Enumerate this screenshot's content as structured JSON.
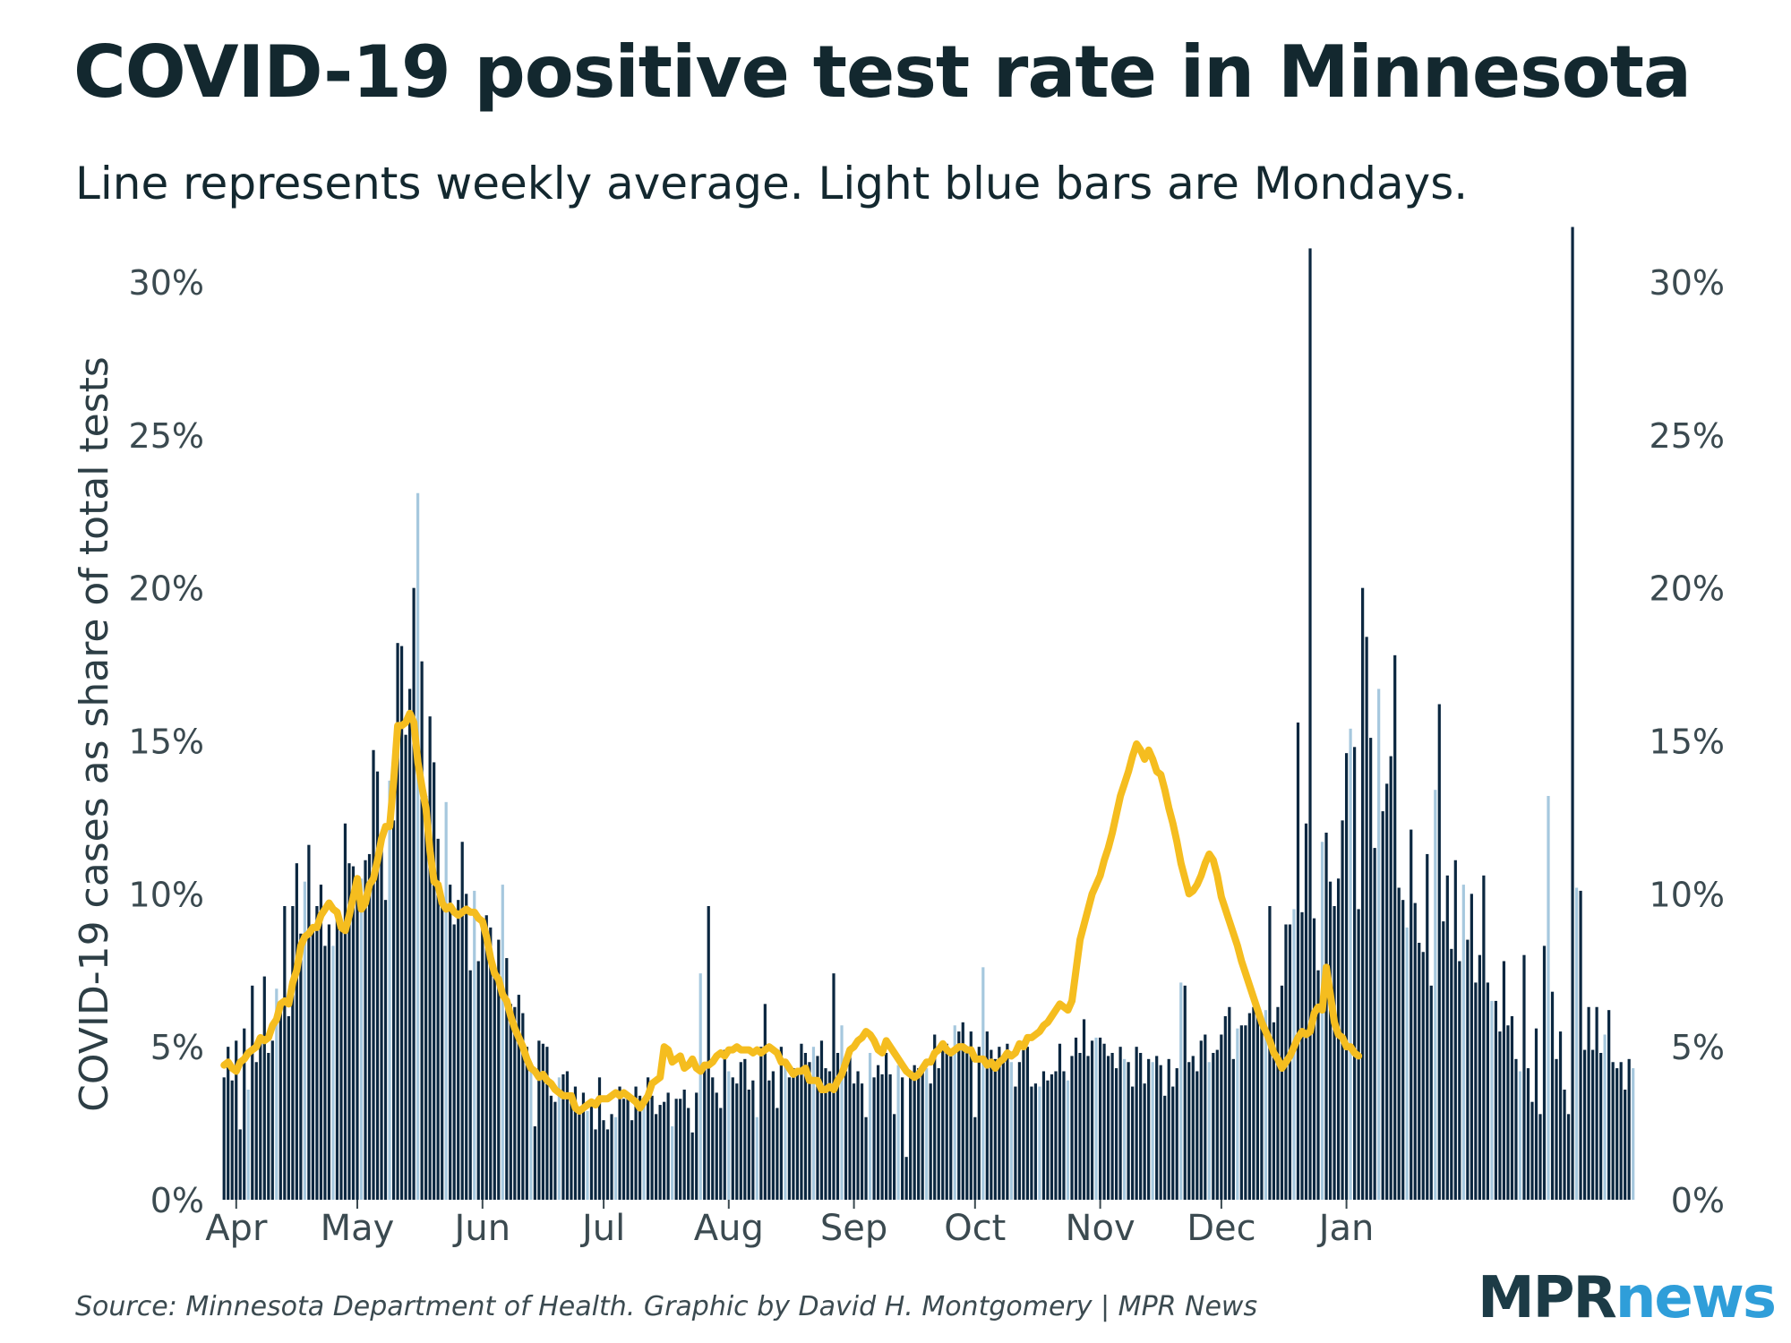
{
  "title": "COVID-19 positive test rate in Minnesota",
  "subtitle": "Line represents weekly average. Light blue bars are Mondays.",
  "source": "Source: Minnesota Department of Health. Graphic by David H. Montgomery | MPR News",
  "logo": {
    "part1": "MPR",
    "part2": "news"
  },
  "colors": {
    "bar": "#0b2740",
    "monday_bar": "#a6c8de",
    "line": "#f5bd1f",
    "text": "#13282f"
  },
  "chart_data": {
    "type": "bar",
    "title": "COVID-19 positive test rate in Minnesota",
    "subtitle": "Line represents weekly average. Light blue bars are Mondays.",
    "ylabel": "COVID-19 cases as share of total tests",
    "xlabel": "",
    "ylim": [
      0,
      32
    ],
    "yticks": [
      "0%",
      "5%",
      "10%",
      "15%",
      "20%",
      "25%",
      "30%"
    ],
    "ytick_values": [
      0,
      5,
      10,
      15,
      20,
      25,
      30
    ],
    "y_axis_sides": "left and right",
    "x_ticks": [
      {
        "label": "Apr",
        "day": 3
      },
      {
        "label": "May",
        "day": 33
      },
      {
        "label": "Jun",
        "day": 64
      },
      {
        "label": "Jul",
        "day": 94
      },
      {
        "label": "Aug",
        "day": 125
      },
      {
        "label": "Sep",
        "day": 156
      },
      {
        "label": "Oct",
        "day": 186
      },
      {
        "label": "Nov",
        "day": 217
      },
      {
        "label": "Dec",
        "day": 247
      },
      {
        "label": "Jan",
        "day": 278
      }
    ],
    "start_date": "2020-03-31",
    "first_monday_index": 6,
    "series": [
      {
        "name": "Daily positive rate",
        "kind": "bar",
        "values": [
          4.0,
          5.0,
          3.9,
          5.2,
          2.3,
          5.6,
          3.6,
          7.0,
          4.5,
          5.2,
          7.3,
          4.8,
          5.2,
          6.9,
          6.2,
          9.6,
          6.0,
          9.6,
          11.0,
          8.7,
          10.4,
          11.6,
          8.9,
          9.6,
          10.3,
          8.3,
          9.0,
          8.3,
          9.5,
          8.9,
          12.3,
          11.0,
          10.9,
          10.0,
          10.5,
          11.1,
          11.3,
          14.7,
          14.0,
          11.6,
          9.8,
          13.7,
          12.4,
          18.2,
          18.1,
          15.2,
          16.7,
          20.0,
          23.1,
          17.6,
          13.2,
          15.8,
          14.3,
          11.8,
          9.9,
          13.0,
          10.3,
          9.0,
          9.8,
          11.7,
          10.0,
          7.5,
          10.1,
          7.8,
          9.0,
          9.3,
          8.9,
          7.6,
          8.5,
          10.3,
          7.9,
          6.4,
          6.3,
          6.7,
          6.1,
          5.0,
          4.2,
          2.4,
          5.2,
          5.1,
          5.0,
          3.4,
          3.2,
          4.0,
          4.1,
          4.2,
          3.2,
          3.7,
          3.0,
          3.5,
          2.9,
          3.3,
          2.3,
          4.0,
          2.6,
          2.3,
          2.8,
          2.7,
          3.7,
          3.3,
          3.5,
          2.6,
          3.7,
          3.4,
          3.1,
          4.0,
          3.4,
          2.8,
          3.1,
          3.2,
          3.5,
          2.4,
          3.3,
          3.3,
          3.6,
          3.0,
          2.2,
          3.5,
          7.4,
          4.4,
          9.6,
          4.0,
          3.5,
          3.0,
          4.9,
          4.2,
          4.0,
          3.8,
          4.5,
          4.6,
          3.6,
          3.9,
          2.7,
          5.0,
          6.4,
          3.9,
          4.2,
          3.0,
          5.0,
          4.6,
          4.0,
          4.3,
          4.2,
          5.1,
          4.8,
          4.5,
          5.0,
          4.7,
          5.2,
          4.3,
          4.2,
          7.4,
          4.8,
          5.7,
          4.2,
          4.9,
          3.8,
          4.2,
          3.8,
          2.7,
          4.8,
          4.0,
          4.4,
          4.1,
          4.8,
          4.1,
          2.8,
          4.4,
          4.0,
          1.4,
          4.0,
          4.4,
          4.3,
          4.3,
          4.3,
          3.8,
          5.4,
          4.3,
          5.1,
          5.1,
          4.7,
          5.7,
          5.5,
          5.8,
          5.0,
          5.5,
          2.7,
          5.0,
          7.6,
          5.5,
          4.9,
          4.6,
          5.0,
          4.7,
          5.1,
          4.5,
          3.7,
          4.5,
          5.2,
          5.0,
          3.7,
          3.8,
          3.7,
          4.2,
          3.9,
          4.1,
          4.2,
          5.1,
          4.2,
          3.9,
          4.7,
          5.3,
          4.8,
          5.9,
          4.7,
          5.2,
          5.3,
          5.3,
          5.1,
          4.7,
          4.8,
          4.3,
          5.0,
          4.6,
          4.5,
          3.7,
          5.0,
          4.8,
          3.8,
          4.6,
          4.5,
          4.7,
          4.4,
          3.4,
          4.6,
          3.7,
          4.3,
          7.1,
          7.0,
          4.5,
          4.7,
          4.2,
          5.2,
          5.4,
          4.5,
          4.8,
          4.9,
          5.4,
          6.0,
          6.3,
          4.6,
          5.6,
          5.7,
          5.7,
          6.1,
          6.3,
          6.1,
          5.9,
          6.2,
          9.6,
          5.8,
          6.3,
          7.0,
          9.0,
          9.0,
          9.5,
          15.6,
          9.4,
          12.3,
          31.1,
          9.2,
          7.5,
          11.7,
          12.0,
          10.4,
          9.6,
          10.5,
          12.4,
          14.6,
          15.4,
          14.8,
          9.5,
          20.0,
          18.4,
          15.1,
          11.5,
          16.7,
          12.7,
          13.6,
          14.5,
          17.8,
          10.2,
          9.8,
          8.9,
          12.1,
          9.7,
          8.4,
          8.1,
          11.3,
          7.0,
          13.4,
          16.2,
          9.1,
          10.6,
          8.2,
          11.1,
          7.8,
          10.3,
          8.5,
          10.0,
          7.1,
          8.0,
          10.6,
          7.1,
          6.5,
          6.5,
          5.5,
          7.8,
          5.7,
          6.0,
          4.6,
          4.2,
          8.0,
          4.3,
          3.2,
          5.6,
          2.8,
          8.3,
          13.2,
          6.8,
          4.6,
          5.5,
          3.6,
          2.8,
          31.8,
          10.2,
          10.1,
          4.9,
          6.3,
          4.9,
          6.3,
          4.8,
          5.4,
          6.2,
          4.5,
          4.3,
          4.5,
          3.6,
          4.6,
          4.3
        ]
      },
      {
        "name": "Weekly average",
        "kind": "line",
        "values": [
          4.4,
          4.5,
          4.3,
          4.2,
          4.5,
          4.6,
          4.8,
          4.9,
          5.0,
          5.3,
          5.2,
          5.3,
          5.7,
          5.9,
          6.4,
          6.5,
          6.4,
          7.1,
          7.5,
          8.3,
          8.6,
          8.7,
          8.9,
          8.9,
          9.3,
          9.5,
          9.7,
          9.5,
          9.4,
          8.9,
          8.8,
          9.3,
          9.9,
          10.5,
          9.5,
          9.7,
          10.3,
          10.5,
          11.1,
          11.8,
          12.2,
          12.2,
          13.7,
          15.5,
          15.5,
          15.6,
          15.9,
          15.6,
          14.3,
          13.5,
          12.8,
          11.4,
          10.4,
          10.3,
          9.7,
          9.5,
          9.6,
          9.4,
          9.3,
          9.4,
          9.5,
          9.4,
          9.4,
          9.2,
          9.1,
          8.6,
          7.9,
          7.4,
          7.2,
          6.7,
          6.5,
          6.0,
          5.6,
          5.3,
          5.0,
          4.6,
          4.3,
          4.2,
          4.0,
          4.1,
          3.9,
          3.8,
          3.6,
          3.5,
          3.4,
          3.4,
          3.4,
          3.0,
          2.9,
          3.0,
          3.1,
          3.2,
          3.1,
          3.3,
          3.3,
          3.3,
          3.4,
          3.5,
          3.4,
          3.5,
          3.4,
          3.3,
          3.2,
          3.0,
          3.2,
          3.4,
          3.8,
          3.9,
          4.0,
          5.0,
          4.9,
          4.5,
          4.6,
          4.7,
          4.3,
          4.4,
          4.6,
          4.3,
          4.2,
          4.4,
          4.4,
          4.5,
          4.7,
          4.8,
          4.7,
          4.9,
          4.9,
          5.0,
          4.9,
          4.9,
          4.9,
          4.8,
          4.9,
          4.8,
          4.9,
          5.0,
          4.9,
          4.8,
          4.5,
          4.5,
          4.3,
          4.1,
          4.2,
          4.2,
          4.3,
          3.9,
          3.9,
          3.9,
          3.6,
          3.6,
          3.7,
          3.6,
          3.9,
          4.1,
          4.5,
          4.9,
          5.0,
          5.2,
          5.3,
          5.5,
          5.4,
          5.2,
          4.9,
          4.8,
          5.2,
          5.0,
          4.8,
          4.6,
          4.4,
          4.2,
          4.1,
          4.0,
          4.1,
          4.3,
          4.5,
          4.5,
          4.8,
          4.9,
          5.1,
          4.9,
          4.8,
          4.9,
          5.0,
          5.0,
          4.9,
          4.9,
          4.6,
          4.6,
          4.6,
          4.4,
          4.5,
          4.3,
          4.5,
          4.6,
          4.8,
          4.7,
          4.8,
          5.1,
          5.0,
          5.3,
          5.3,
          5.4,
          5.5,
          5.7,
          5.8,
          6.0,
          6.2,
          6.4,
          6.3,
          6.2,
          6.5,
          7.5,
          8.5,
          9.0,
          9.5,
          10.0,
          10.3,
          10.6,
          11.1,
          11.5,
          12.0,
          12.6,
          13.2,
          13.6,
          14.0,
          14.5,
          14.9,
          14.7,
          14.4,
          14.7,
          14.4,
          14.0,
          13.9,
          13.4,
          12.8,
          12.3,
          11.7,
          11.0,
          10.5,
          10.0,
          10.1,
          10.3,
          10.6,
          11.0,
          11.3,
          11.1,
          10.6,
          9.9,
          9.5,
          9.1,
          8.7,
          8.3,
          7.8,
          7.4,
          7.0,
          6.6,
          6.2,
          5.8,
          5.5,
          5.2,
          4.8,
          4.6,
          4.3,
          4.5,
          4.7,
          5.0,
          5.3,
          5.5,
          5.4,
          5.5,
          6.1,
          6.3,
          6.2,
          7.6,
          6.7,
          5.8,
          5.4,
          5.3,
          5.0,
          5.0,
          4.8,
          4.7
        ]
      }
    ]
  }
}
